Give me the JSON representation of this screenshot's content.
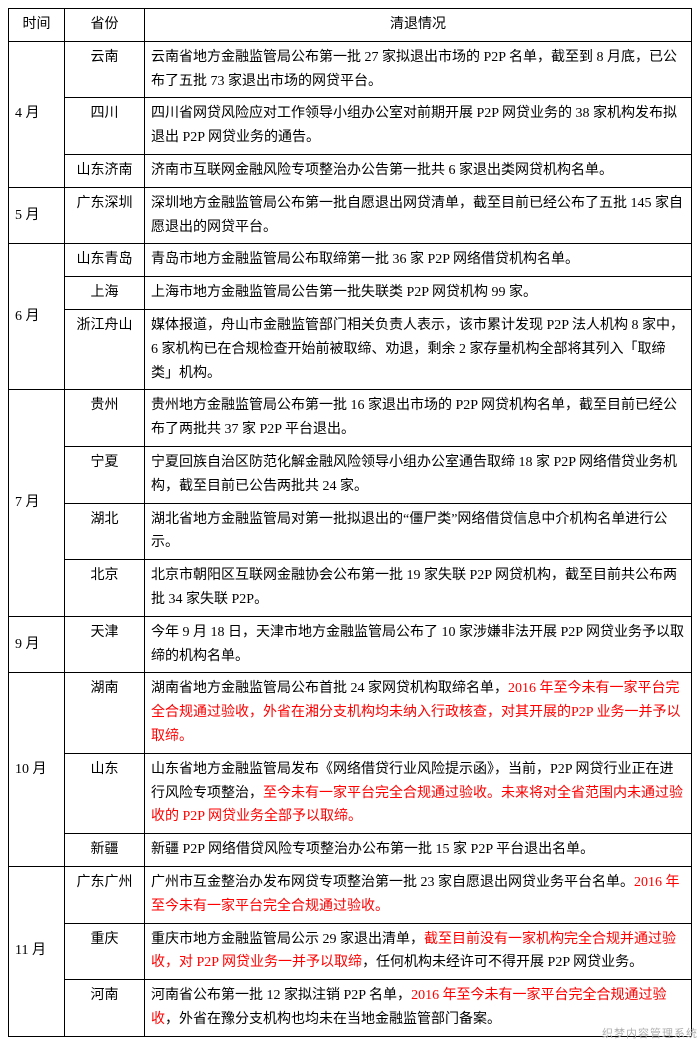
{
  "columns": {
    "time": "时间",
    "province": "省份",
    "detail": "清退情况"
  },
  "months": {
    "apr": "4 月",
    "may": "5 月",
    "jun": "6 月",
    "jul": "7 月",
    "sep": "9 月",
    "oct": "10 月",
    "nov": "11 月"
  },
  "rows": {
    "r1": {
      "prov": "云南",
      "text": "云南省地方金融监管局公布第一批 27 家拟退出市场的 P2P 名单，截至到 8 月底，已公布了五批 73 家退出市场的网贷平台。"
    },
    "r2": {
      "prov": "四川",
      "text": "四川省网贷风险应对工作领导小组办公室对前期开展 P2P 网贷业务的 38 家机构发布拟退出 P2P 网贷业务的通告。"
    },
    "r3": {
      "prov": "山东济南",
      "text": "济南市互联网金融风险专项整治办公告第一批共 6 家退出类网贷机构名单。"
    },
    "r4": {
      "prov": "广东深圳",
      "text": "深圳地方金融监管局公布第一批自愿退出网贷清单，截至目前已经公布了五批 145 家自愿退出的网贷平台。"
    },
    "r5": {
      "prov": "山东青岛",
      "text": "青岛市地方金融监管局公布取缔第一批 36 家 P2P 网络借贷机构名单。"
    },
    "r6": {
      "prov": "上海",
      "text": "上海市地方金融监管局公告第一批失联类 P2P 网贷机构 99 家。"
    },
    "r7": {
      "prov": "浙江舟山",
      "text": "媒体报道，舟山市金融监管部门相关负责人表示，该市累计发现 P2P 法人机构 8 家中，6 家机构已在合规检查开始前被取缔、劝退，剩余 2 家存量机构全部将其列入「取缔类」机构。"
    },
    "r8": {
      "prov": "贵州",
      "text": "贵州地方金融监管局公布第一批 16 家退出市场的 P2P 网贷机构名单，截至目前已经公布了两批共 37 家 P2P 平台退出。"
    },
    "r9": {
      "prov": "宁夏",
      "text": "宁夏回族自治区防范化解金融风险领导小组办公室通告取缔 18 家 P2P 网络借贷业务机构，截至目前已公告两批共 24 家。"
    },
    "r10": {
      "prov": "湖北",
      "text": "湖北省地方金融监管局对第一批拟退出的“僵尸类”网络借贷信息中介机构名单进行公示。"
    },
    "r11": {
      "prov": "北京",
      "text": "北京市朝阳区互联网金融协会公布第一批 19 家失联 P2P 网贷机构，截至目前共公布两批 34 家失联 P2P。"
    },
    "r12": {
      "prov": "天津",
      "text": "今年 9 月 18 日，天津市地方金融监管局公布了 10 家涉嫌非法开展 P2P 网贷业务予以取缔的机构名单。"
    },
    "r13": {
      "prov": "湖南",
      "a": "湖南省地方金融监管局公布首批 24 家网贷机构取缔名单，",
      "b": "2016 年至今未有一家平台完全合规通过验收，外省在湘分支机构均未纳入行政核查，对其开展的P2P 业务一并予以取缔。"
    },
    "r14": {
      "prov": "山东",
      "a": "山东省地方金融监管局发布《网络借贷行业风险提示函》，当前，P2P 网贷行业正在进行风险专项整治，",
      "b": "至今未有一家平台完全合规通过验收。未来将对全省范围内未通过验收的 P2P 网贷业务全部予以取缔。"
    },
    "r15": {
      "prov": "新疆",
      "text": "新疆 P2P 网络借贷风险专项整治办公布第一批 15 家 P2P 平台退出名单。"
    },
    "r16": {
      "prov": "广东广州",
      "a": "广州市互金整治办发布网贷专项整治第一批 23 家自愿退出网贷业务平台名单。",
      "b": "2016 年至今未有一家平台完全合规通过验收。"
    },
    "r17": {
      "prov": "重庆",
      "a": "重庆市地方金融监管局公示 29 家退出清单，",
      "b": "截至目前没有一家机构完全合规并通过验收，对 P2P 网贷业务一并予以取缔",
      "c": "，任何机构未经许可不得开展 P2P 网贷业务。"
    },
    "r18": {
      "prov": "河南",
      "a": "河南省公布第一批 12 家拟注销 P2P 名单，",
      "b": "2016 年至今未有一家平台完全合规通过验收",
      "c": "，外省在豫分支机构也均未在当地金融监管部门备案。"
    }
  },
  "watermark": "织梦内容管理系统"
}
